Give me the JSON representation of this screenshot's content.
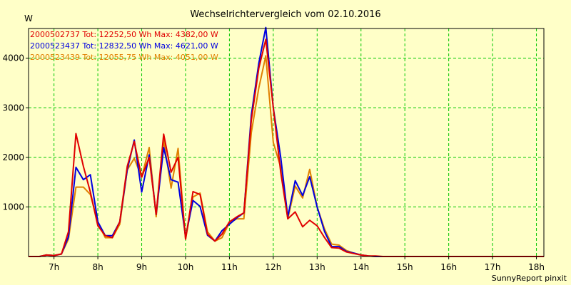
{
  "chart_data": {
    "type": "line",
    "title": "Wechselrichtervergleich vom 02.10.2016",
    "ylabel": "W",
    "footer": "SunnyReport pinxit",
    "xlim": [
      6.42,
      18.17
    ],
    "ylim": [
      0,
      4600
    ],
    "grid": true,
    "legend_placement": "top-left",
    "x_ticks": [
      7,
      8,
      9,
      10,
      11,
      12,
      13,
      14,
      15,
      16,
      17,
      18
    ],
    "x_tick_labels": [
      "7h",
      "8h",
      "9h",
      "10h",
      "11h",
      "12h",
      "13h",
      "14h",
      "15h",
      "16h",
      "17h",
      "18h"
    ],
    "y_ticks": [
      1000,
      2000,
      3000,
      4000
    ],
    "y_tick_labels": [
      "1000",
      "2000",
      "3000",
      "4000"
    ],
    "colors": {
      "background": "#ffffc8",
      "grid": "#00c800",
      "axis": "#000000"
    },
    "x": [
      6.42,
      6.67,
      6.83,
      7.0,
      7.17,
      7.33,
      7.5,
      7.67,
      7.83,
      8.0,
      8.17,
      8.33,
      8.5,
      8.67,
      8.83,
      9.0,
      9.17,
      9.33,
      9.5,
      9.67,
      9.83,
      10.0,
      10.17,
      10.33,
      10.5,
      10.67,
      10.83,
      11.0,
      11.17,
      11.33,
      11.5,
      11.67,
      11.83,
      12.0,
      12.17,
      12.33,
      12.5,
      12.67,
      12.83,
      13.0,
      13.17,
      13.33,
      13.5,
      13.67,
      13.83,
      14.0,
      14.17,
      14.33,
      14.5,
      14.67,
      14.83,
      15.0,
      15.17,
      15.33,
      15.5,
      15.67,
      15.83,
      16.0,
      16.17,
      16.33,
      16.5,
      16.67,
      16.83,
      17.0,
      17.17,
      17.33,
      17.5,
      17.67,
      17.83,
      18.0,
      18.17
    ],
    "series": [
      {
        "name": "2000502737",
        "label": "2000502737 Tot: 12252,50 Wh Max: 4382,00 W",
        "color": "#e00000",
        "values": [
          0,
          0,
          30,
          20,
          50,
          500,
          2480,
          1820,
          1300,
          620,
          420,
          380,
          700,
          1820,
          2320,
          1600,
          2000,
          850,
          2470,
          1700,
          2000,
          350,
          1310,
          1250,
          450,
          310,
          450,
          700,
          800,
          880,
          2750,
          3800,
          4380,
          3000,
          1700,
          760,
          900,
          600,
          730,
          620,
          380,
          180,
          170,
          90,
          60,
          30,
          10,
          10,
          0,
          0,
          0,
          0,
          0,
          0,
          0,
          0,
          0,
          0,
          0,
          0,
          0,
          0,
          0,
          0,
          0,
          0,
          0,
          0,
          0,
          0,
          0
        ]
      },
      {
        "name": "2000523437",
        "label": "2000523437 Tot: 12832,50 Wh Max: 4621,00 W",
        "color": "#0000e0",
        "values": [
          0,
          0,
          30,
          20,
          50,
          400,
          1800,
          1550,
          1650,
          700,
          420,
          420,
          700,
          1750,
          2350,
          1300,
          2050,
          850,
          2200,
          1550,
          1500,
          400,
          1130,
          1010,
          430,
          310,
          520,
          650,
          780,
          880,
          2850,
          3900,
          4620,
          3000,
          2000,
          800,
          1530,
          1230,
          1610,
          1000,
          500,
          200,
          200,
          100,
          70,
          30,
          10,
          0,
          0,
          0,
          0,
          0,
          0,
          0,
          0,
          0,
          0,
          0,
          0,
          0,
          0,
          0,
          0,
          0,
          0,
          0,
          0,
          0,
          0,
          0,
          0
        ]
      },
      {
        "name": "2000523439",
        "label": "2000523439 Tot: 12055,75 Wh Max: 4051,00 W",
        "color": "#e08000",
        "values": [
          0,
          0,
          30,
          20,
          50,
          350,
          1400,
          1400,
          1250,
          680,
          380,
          380,
          650,
          1750,
          1980,
          1600,
          2200,
          800,
          2350,
          1380,
          2180,
          350,
          1200,
          1280,
          500,
          310,
          380,
          680,
          760,
          760,
          2500,
          3400,
          4050,
          2300,
          1800,
          760,
          1420,
          1180,
          1760,
          1000,
          550,
          250,
          230,
          120,
          70,
          30,
          10,
          0,
          0,
          0,
          0,
          0,
          0,
          0,
          0,
          0,
          0,
          0,
          0,
          0,
          0,
          0,
          0,
          0,
          0,
          0,
          0,
          0,
          0,
          0,
          0
        ]
      }
    ]
  }
}
